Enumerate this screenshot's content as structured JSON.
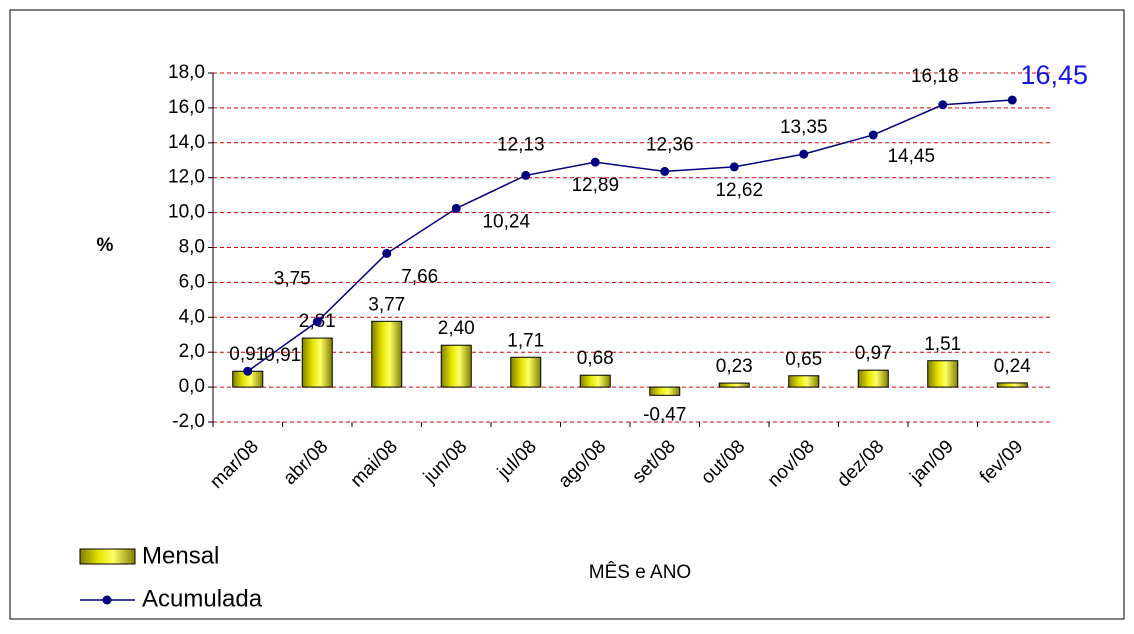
{
  "chart_data": {
    "type": "bar-line",
    "y_label": "%",
    "x_label": "MÊS e ANO",
    "categories": [
      "mar/08",
      "abr/08",
      "mai/08",
      "jun/08",
      "jul/08",
      "ago/08",
      "set/08",
      "out/08",
      "nov/08",
      "dez/08",
      "jan/09",
      "fev/09"
    ],
    "series": [
      {
        "name": "Mensal",
        "type": "bar",
        "color": "#e6e600",
        "values": [
          0.91,
          2.81,
          3.77,
          2.4,
          1.71,
          0.68,
          -0.47,
          0.23,
          0.65,
          0.97,
          1.51,
          0.24
        ],
        "value_labels": [
          "0,91",
          "2,81",
          "3,77",
          "2,40",
          "1,71",
          "0,68",
          "-0,47",
          "0,23",
          "0,65",
          "0,97",
          "1,51",
          "0,24"
        ]
      },
      {
        "name": "Acumulada",
        "type": "line",
        "color": "#000080",
        "values": [
          0.91,
          3.75,
          7.66,
          10.24,
          12.13,
          12.89,
          12.36,
          12.62,
          13.35,
          14.45,
          16.18,
          16.45
        ],
        "value_labels": [
          "0,91",
          "3,75",
          "7,66",
          "10,24",
          "12,13",
          "12,89",
          "12,36",
          "12,62",
          "13,35",
          "14,45",
          "16,18",
          "16,45"
        ]
      }
    ],
    "ylim": [
      -2,
      18
    ],
    "yticks": [
      {
        "value": -2,
        "label": "-2,0"
      },
      {
        "value": 0,
        "label": "0,0"
      },
      {
        "value": 2,
        "label": "2,0"
      },
      {
        "value": 4,
        "label": "4,0"
      },
      {
        "value": 6,
        "label": "6,0"
      },
      {
        "value": 8,
        "label": "8,0"
      },
      {
        "value": 10,
        "label": "10,0"
      },
      {
        "value": 12,
        "label": "12,0"
      },
      {
        "value": 14,
        "label": "14,0"
      },
      {
        "value": 16,
        "label": "16,0"
      },
      {
        "value": 18,
        "label": "18,0"
      }
    ],
    "grid": true,
    "legend": "bottom-left"
  }
}
